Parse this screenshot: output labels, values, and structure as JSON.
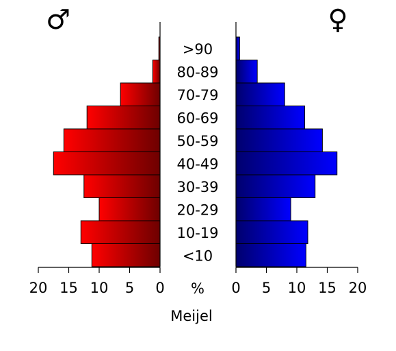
{
  "chart_data": {
    "type": "bar",
    "orientation": "horizontal",
    "layout": "population-pyramid",
    "title": "",
    "xlabel": "Meijel",
    "unit_label": "%",
    "categories": [
      "<10",
      "10-19",
      "20-29",
      "30-39",
      "40-49",
      "50-59",
      "60-69",
      "70-79",
      "80-89",
      ">90"
    ],
    "series": [
      {
        "name": "male",
        "symbol": "♂",
        "side": "left",
        "color_light": "#ff0000",
        "color_dark": "#6e0000",
        "values": [
          11.2,
          13.0,
          10.0,
          12.5,
          17.5,
          15.8,
          12.0,
          6.5,
          1.2,
          0.2
        ]
      },
      {
        "name": "female",
        "symbol": "♀",
        "side": "right",
        "color_light": "#0000ff",
        "color_dark": "#00006e",
        "values": [
          11.5,
          11.8,
          9.0,
          13.0,
          16.6,
          14.2,
          11.3,
          8.0,
          3.5,
          0.6
        ]
      }
    ],
    "xlim": [
      0,
      20
    ],
    "xticks": [
      0,
      5,
      10,
      15,
      20
    ],
    "grid": false,
    "legend": "none"
  }
}
